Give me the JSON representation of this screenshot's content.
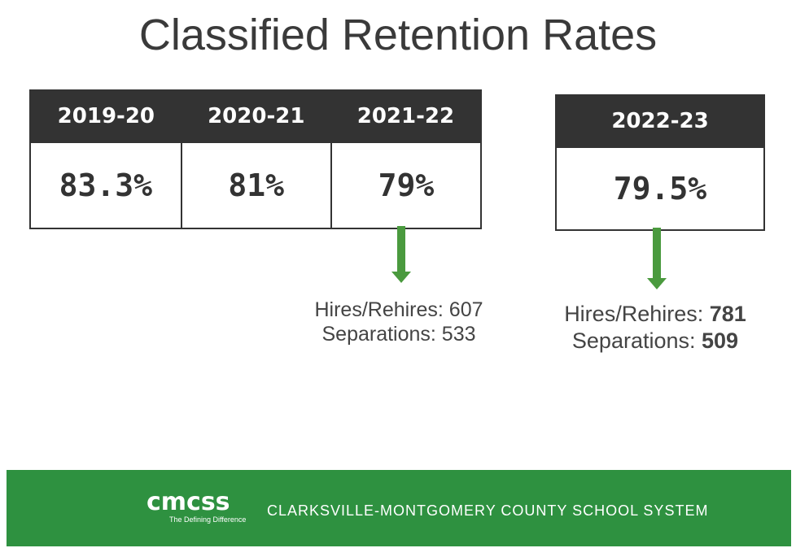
{
  "title": "Classified Retention Rates",
  "years": [
    {
      "label": "2019-20",
      "rate": "83.3%"
    },
    {
      "label": "2020-21",
      "rate": "81%"
    },
    {
      "label": "2021-22",
      "rate": "79%"
    }
  ],
  "current": {
    "label": "2022-23",
    "rate": "79.5%"
  },
  "stats_2021": {
    "hires": "Hires/Rehires: 607",
    "separations": "Separations: 533"
  },
  "stats_2022": {
    "hires_label": "Hires/Rehires: ",
    "hires": "781",
    "separations_label": "Separations: ",
    "separations": "509"
  },
  "footer": {
    "logo": "cmcss",
    "tagline": "The Defining Difference",
    "org": "CLARKSVILLE-MONTGOMERY COUNTY SCHOOL SYSTEM"
  },
  "colors": {
    "header": "#333333",
    "green": "#2e9140",
    "arrow": "#4a9a3e"
  }
}
